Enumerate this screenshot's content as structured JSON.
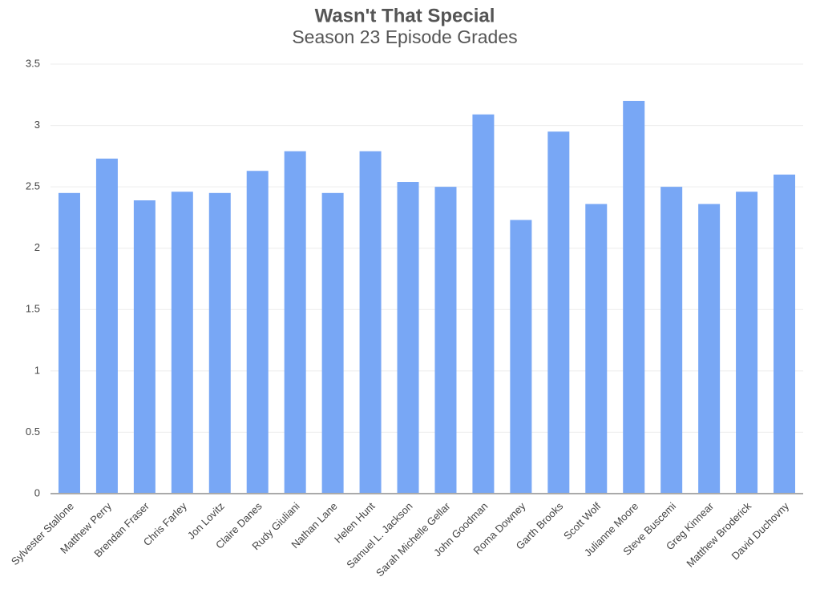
{
  "chart_data": {
    "type": "bar",
    "title": "Wasn't That Special",
    "subtitle": "Season 23 Episode Grades",
    "categories": [
      "Sylvester Stallone",
      "Matthew Perry",
      "Brendan Fraser",
      "Chris Farley",
      "Jon Lovitz",
      "Claire Danes",
      "Rudy Giuliani",
      "Nathan Lane",
      "Helen Hunt",
      "Samuel L. Jackson",
      "Sarah Michelle Gellar",
      "John Goodman",
      "Roma Downey",
      "Garth Brooks",
      "Scott Wolf",
      "Julianne Moore",
      "Steve Buscemi",
      "Greg Kinnear",
      "Matthew Broderick",
      "David Duchovny"
    ],
    "values": [
      2.45,
      2.73,
      2.39,
      2.46,
      2.45,
      2.63,
      2.79,
      2.45,
      2.79,
      2.54,
      2.5,
      3.09,
      2.23,
      2.95,
      2.36,
      3.2,
      2.5,
      2.36,
      2.46,
      2.6
    ],
    "color": "#78a7f5",
    "ylim": [
      0,
      3.5
    ],
    "yticks": [
      0,
      0.5,
      1,
      1.5,
      2,
      2.5,
      3,
      3.5
    ],
    "grid": true
  }
}
